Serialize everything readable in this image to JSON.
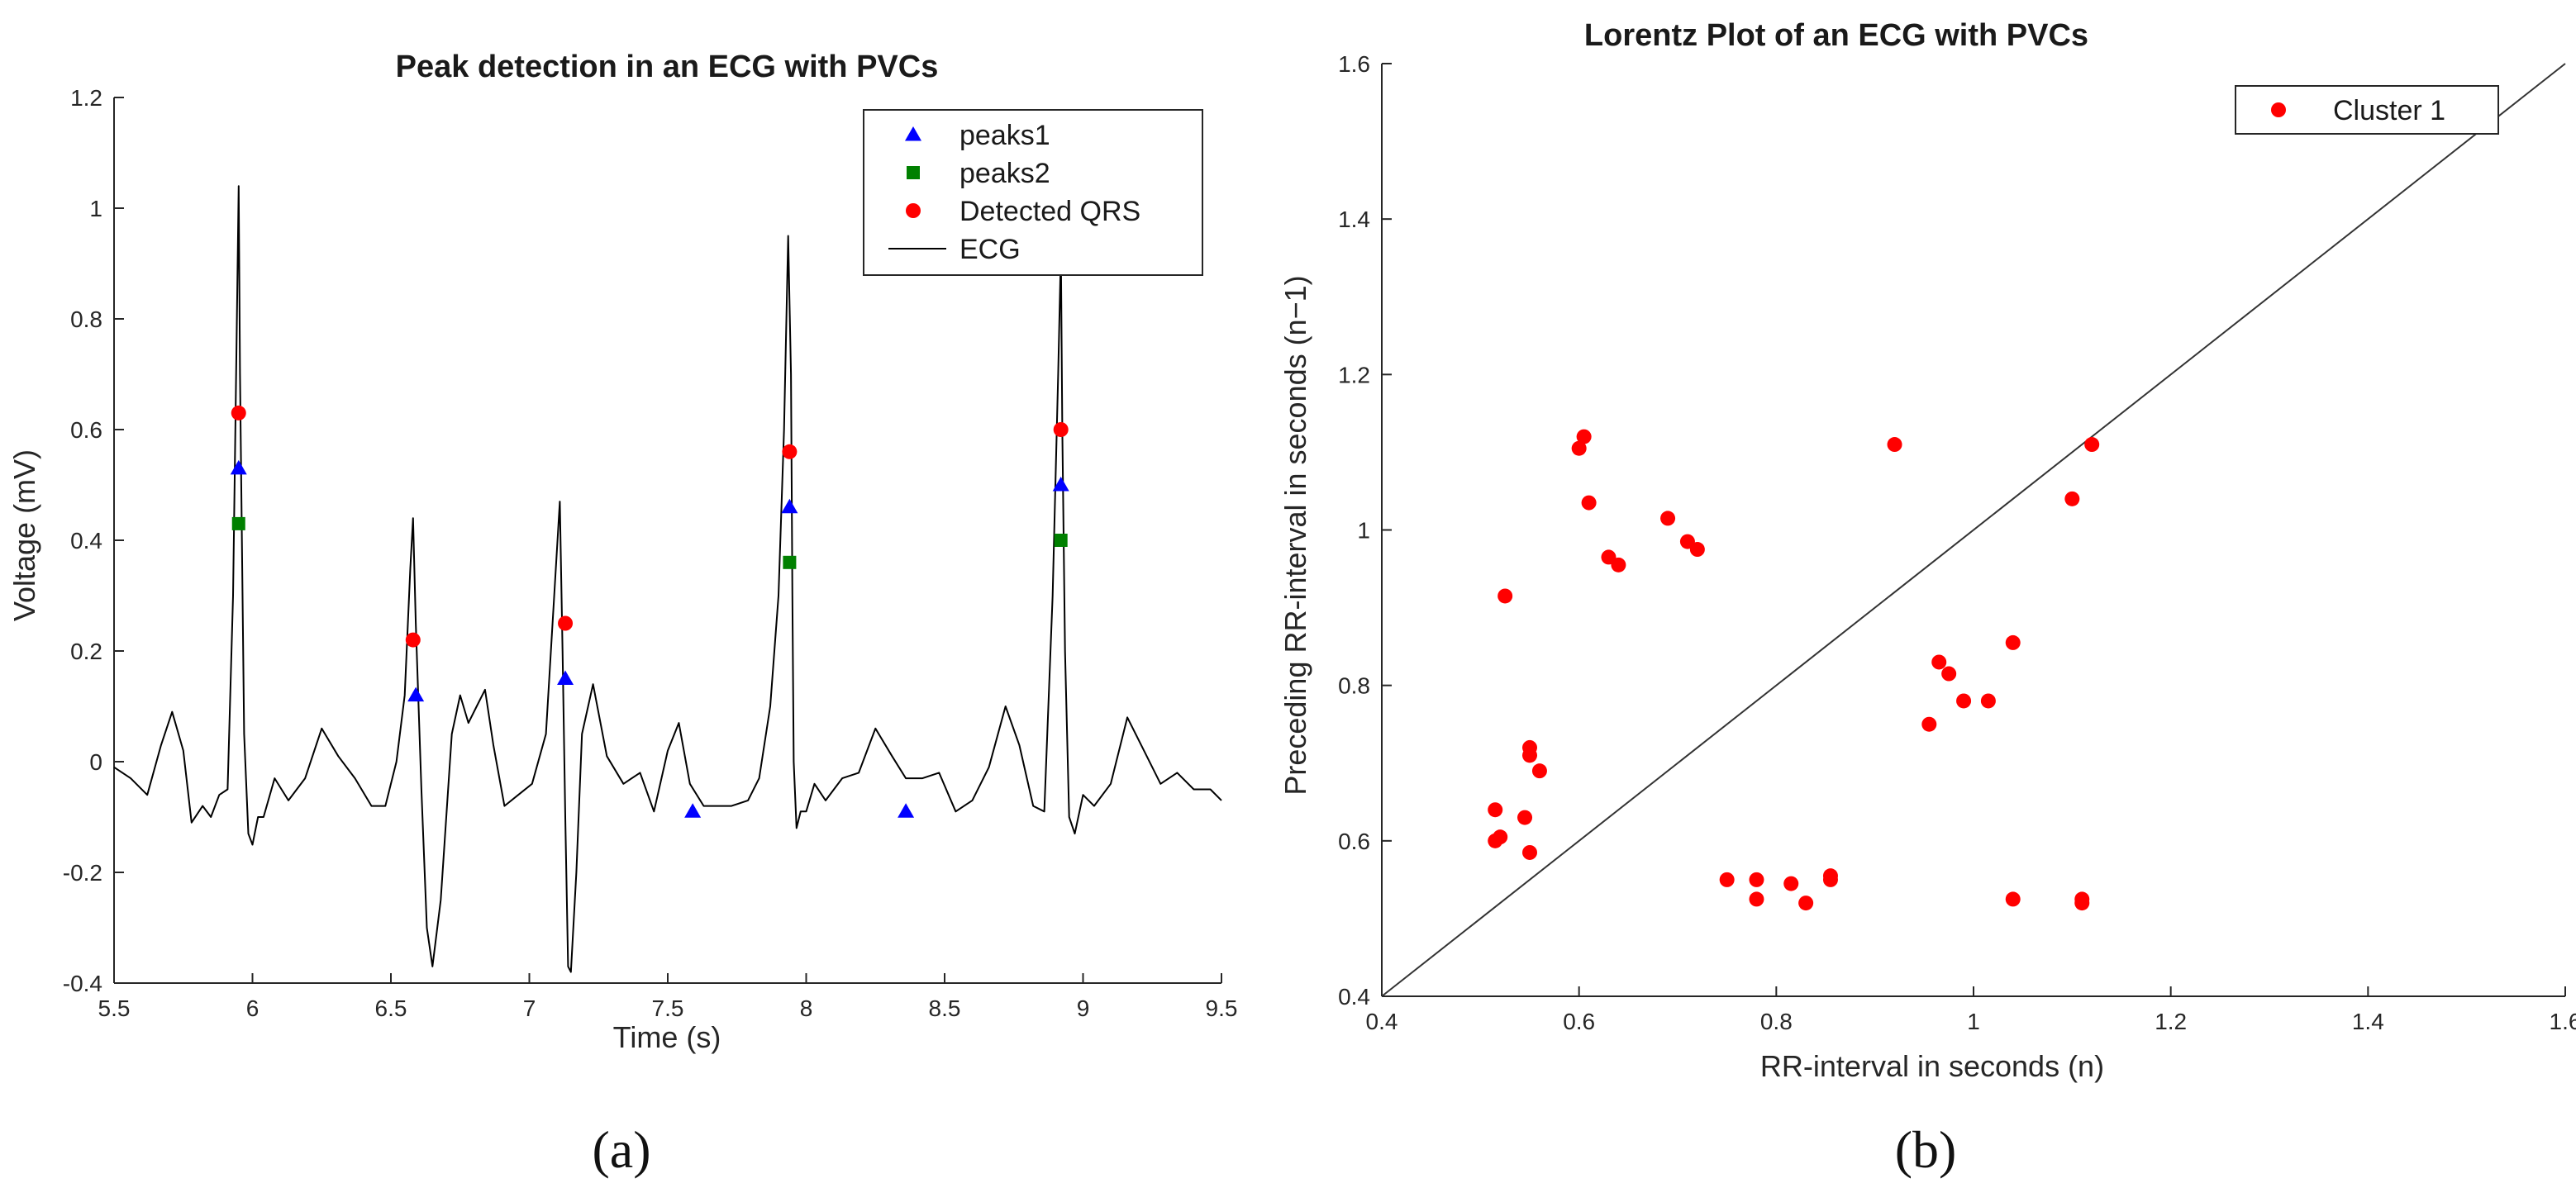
{
  "chart_data": [
    {
      "type": "line",
      "title": "Peak detection in an ECG with PVCs",
      "xlabel": "Time (s)",
      "ylabel": "Voltage (mV)",
      "xlim": [
        5.5,
        9.5
      ],
      "ylim": [
        -0.4,
        1.2
      ],
      "xticks": [
        5.5,
        6,
        6.5,
        7,
        7.5,
        8,
        8.5,
        9,
        9.5
      ],
      "xtick_labels": [
        "5.5",
        "6",
        "6.5",
        "7",
        "7.5",
        "8",
        "8.5",
        "9",
        "9.5"
      ],
      "yticks": [
        -0.4,
        -0.2,
        0,
        0.2,
        0.4,
        0.6,
        0.8,
        1,
        1.2
      ],
      "ytick_labels": [
        "-0.4",
        "-0.2",
        "0",
        "0.2",
        "0.4",
        "0.6",
        "0.8",
        "1",
        "1.2"
      ],
      "grid": false,
      "legend_position": "top-right",
      "panel_label": "(a)",
      "series": [
        {
          "name": "peaks1",
          "marker": "triangle",
          "color": "#0000ff",
          "x": [
            5.95,
            6.59,
            7.13,
            7.59,
            7.94,
            8.36,
            8.92
          ],
          "y": [
            0.53,
            0.12,
            0.15,
            -0.09,
            0.46,
            -0.09,
            0.5
          ]
        },
        {
          "name": "peaks2",
          "marker": "square",
          "color": "#008000",
          "x": [
            5.95,
            7.94,
            8.92
          ],
          "y": [
            0.43,
            0.36,
            0.4
          ]
        },
        {
          "name": "Detected QRS",
          "marker": "circle",
          "color": "#ff0000",
          "x": [
            5.95,
            6.58,
            7.13,
            7.94,
            8.92
          ],
          "y": [
            0.63,
            0.22,
            0.25,
            0.56,
            0.6
          ]
        },
        {
          "name": "ECG",
          "marker": "line",
          "color": "#000000",
          "x": [
            5.5,
            5.56,
            5.62,
            5.67,
            5.71,
            5.75,
            5.78,
            5.82,
            5.85,
            5.88,
            5.91,
            5.93,
            5.945,
            5.95,
            5.955,
            5.97,
            5.985,
            6.0,
            6.02,
            6.04,
            6.08,
            6.13,
            6.19,
            6.25,
            6.31,
            6.37,
            6.43,
            6.48,
            6.52,
            6.55,
            6.57,
            6.58,
            6.59,
            6.61,
            6.63,
            6.65,
            6.68,
            6.72,
            6.75,
            6.78,
            6.81,
            6.84,
            6.87,
            6.91,
            6.96,
            7.01,
            7.06,
            7.09,
            7.11,
            7.12,
            7.13,
            7.14,
            7.15,
            7.17,
            7.19,
            7.23,
            7.28,
            7.34,
            7.4,
            7.45,
            7.5,
            7.54,
            7.58,
            7.63,
            7.68,
            7.73,
            7.79,
            7.83,
            7.87,
            7.9,
            7.92,
            7.935,
            7.945,
            7.95,
            7.955,
            7.965,
            7.98,
            8.0,
            8.03,
            8.07,
            8.13,
            8.19,
            8.25,
            8.31,
            8.36,
            8.42,
            8.48,
            8.54,
            8.6,
            8.66,
            8.72,
            8.77,
            8.82,
            8.86,
            8.89,
            8.91,
            8.92,
            8.925,
            8.935,
            8.95,
            8.97,
            9.0,
            9.04,
            9.1,
            9.16,
            9.22,
            9.28,
            9.34,
            9.4,
            9.46,
            9.5
          ],
          "y": [
            -0.01,
            -0.03,
            -0.06,
            0.03,
            0.09,
            0.02,
            -0.11,
            -0.08,
            -0.1,
            -0.06,
            -0.05,
            0.3,
            0.85,
            1.04,
            0.7,
            0.05,
            -0.13,
            -0.15,
            -0.1,
            -0.1,
            -0.03,
            -0.07,
            -0.03,
            0.06,
            0.01,
            -0.03,
            -0.08,
            -0.08,
            0.0,
            0.12,
            0.35,
            0.44,
            0.25,
            -0.05,
            -0.3,
            -0.37,
            -0.25,
            0.05,
            0.12,
            0.07,
            0.1,
            0.13,
            0.03,
            -0.08,
            -0.06,
            -0.04,
            0.05,
            0.3,
            0.47,
            0.2,
            -0.1,
            -0.37,
            -0.38,
            -0.2,
            0.05,
            0.14,
            0.01,
            -0.04,
            -0.02,
            -0.09,
            0.02,
            0.07,
            -0.04,
            -0.08,
            -0.08,
            -0.08,
            -0.07,
            -0.03,
            0.1,
            0.3,
            0.6,
            0.95,
            0.7,
            0.3,
            0.0,
            -0.12,
            -0.09,
            -0.09,
            -0.04,
            -0.07,
            -0.03,
            -0.02,
            0.06,
            0.01,
            -0.03,
            -0.03,
            -0.02,
            -0.09,
            -0.07,
            -0.01,
            0.1,
            0.03,
            -0.08,
            -0.09,
            0.3,
            0.7,
            0.92,
            0.6,
            0.2,
            -0.1,
            -0.13,
            -0.06,
            -0.08,
            -0.04,
            0.08,
            0.02,
            -0.04,
            -0.02,
            -0.05,
            -0.05,
            -0.07
          ]
        }
      ]
    },
    {
      "type": "scatter",
      "title": "Lorentz Plot of an ECG with PVCs",
      "xlabel": "RR-interval in seconds (n)",
      "ylabel": "Preceding RR-interval in seconds (n−1)",
      "xlim": [
        0.4,
        1.6
      ],
      "ylim": [
        0.4,
        1.6
      ],
      "xticks": [
        0.4,
        0.6,
        0.8,
        1,
        1.2,
        1.4,
        1.6
      ],
      "xtick_labels": [
        "0.4",
        "0.6",
        "0.8",
        "1",
        "1.2",
        "1.4",
        "1.6"
      ],
      "yticks": [
        0.4,
        0.6,
        0.8,
        1,
        1.2,
        1.4,
        1.6
      ],
      "ytick_labels": [
        "0.4",
        "0.6",
        "0.8",
        "1",
        "1.2",
        "1.4",
        "1.6"
      ],
      "grid": false,
      "legend_position": "top-right",
      "reference_line": "y = x",
      "panel_label": "(b)",
      "series": [
        {
          "name": "Cluster 1",
          "marker": "circle",
          "color": "#ff0000",
          "x": [
            0.6,
            0.605,
            0.61,
            0.525,
            0.69,
            0.71,
            0.72,
            0.63,
            0.64,
            0.92,
            1.12,
            1.1,
            0.55,
            0.55,
            0.56,
            0.515,
            0.515,
            0.52,
            0.545,
            0.55,
            0.965,
            0.975,
            0.99,
            1.015,
            0.955,
            1.04,
            0.75,
            0.78,
            0.78,
            0.815,
            0.83,
            0.855,
            0.855,
            1.04,
            1.11,
            1.11
          ],
          "y": [
            1.105,
            1.12,
            1.035,
            0.915,
            1.015,
            0.985,
            0.975,
            0.965,
            0.955,
            1.11,
            1.11,
            1.04,
            0.72,
            0.71,
            0.69,
            0.64,
            0.6,
            0.605,
            0.63,
            0.585,
            0.83,
            0.815,
            0.78,
            0.78,
            0.75,
            0.855,
            0.55,
            0.55,
            0.525,
            0.545,
            0.52,
            0.555,
            0.55,
            0.525,
            0.525,
            0.52
          ]
        }
      ]
    }
  ]
}
